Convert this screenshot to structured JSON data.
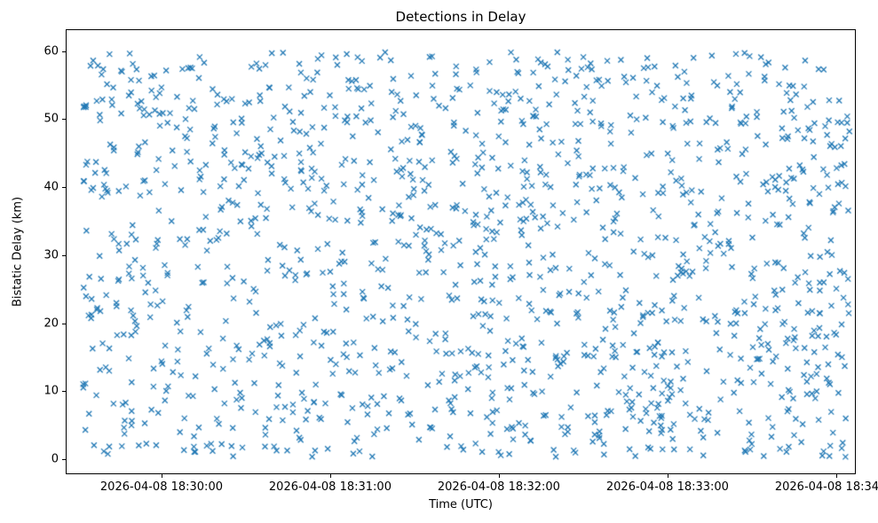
{
  "chart_data": {
    "type": "scatter",
    "title": "Detections in Delay",
    "xlabel": "Time (UTC)",
    "ylabel": "Bistatic Delay (km)",
    "marker": "x",
    "marker_color": "#1f77b4",
    "marker_size_px": 3,
    "marker_line_width": 1.25,
    "grid": false,
    "legend": null,
    "x_ticks": [
      {
        "minutes": 0,
        "label": "2026-04-08 18:30:00"
      },
      {
        "minutes": 1,
        "label": "2026-04-08 18:31:00"
      },
      {
        "minutes": 2,
        "label": "2026-04-08 18:32:00"
      },
      {
        "minutes": 3,
        "label": "2026-04-08 18:33:00"
      },
      {
        "minutes": 4,
        "label": "2026-04-08 18:34:00"
      }
    ],
    "y_ticks": [
      {
        "value": 0,
        "label": "0"
      },
      {
        "value": 10,
        "label": "10"
      },
      {
        "value": 20,
        "label": "20"
      },
      {
        "value": 30,
        "label": "30"
      },
      {
        "value": 40,
        "label": "40"
      },
      {
        "value": 50,
        "label": "50"
      },
      {
        "value": 60,
        "label": "60"
      }
    ],
    "xlim_minutes": [
      -0.563,
      4.111
    ],
    "ylim": [
      -2.1,
      63.1
    ],
    "points_spec": {
      "n": 1500,
      "distribution": "uniform",
      "x_min_minutes": -0.47,
      "x_max_minutes": 4.08,
      "y_min": 0.3,
      "y_max": 59.9,
      "seed": 12345
    }
  }
}
